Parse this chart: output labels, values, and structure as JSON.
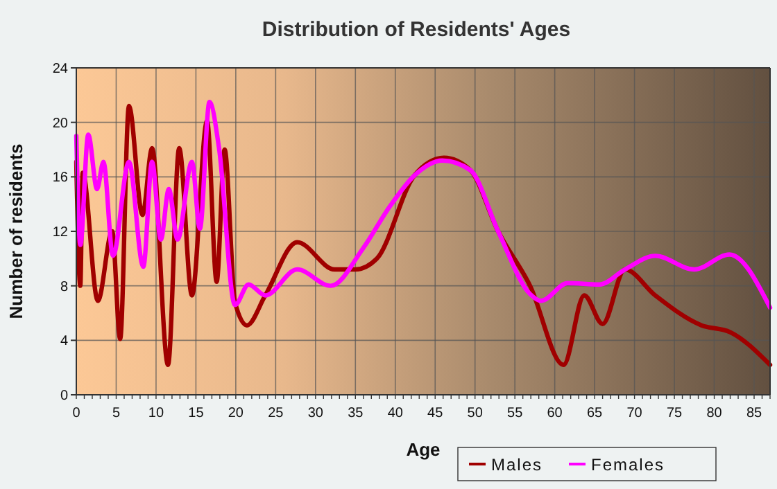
{
  "chart_data": {
    "type": "line",
    "title": "Distribution of Residents' Ages",
    "xlabel": "Age",
    "ylabel": "Number of residents",
    "xlim": [
      0,
      87
    ],
    "ylim": [
      0,
      24
    ],
    "xticks": [
      0,
      5,
      10,
      15,
      20,
      25,
      30,
      35,
      40,
      45,
      50,
      55,
      60,
      65,
      70,
      75,
      80,
      85
    ],
    "yticks": [
      0,
      4,
      8,
      12,
      16,
      20,
      24
    ],
    "grid": true,
    "legend": "bottom right",
    "line_style": "solid",
    "marker": "none",
    "series": [
      {
        "name": "Males",
        "color": "#a00000",
        "x": [
          0,
          0.5,
          0.8,
          2.7,
          4.5,
          5.5,
          6.6,
          8.3,
          9.5,
          11.5,
          12.9,
          14.5,
          16.4,
          17.6,
          18.6,
          19.9,
          21.4,
          23.7,
          27.7,
          32.4,
          35,
          37.7,
          42.4,
          46.1,
          49.4,
          52.9,
          56.9,
          61.1,
          63.7,
          66,
          68.8,
          72.6,
          78.4,
          82,
          87
        ],
        "values": [
          17.1,
          8,
          16.3,
          6.9,
          12,
          4.1,
          21.2,
          13.2,
          18.1,
          2.2,
          18.1,
          7.3,
          20.1,
          8.3,
          18,
          6.8,
          5.1,
          7.3,
          11.2,
          9.2,
          9.2,
          10,
          16.1,
          17.4,
          16.5,
          12,
          8,
          2.2,
          7.3,
          5.2,
          9.2,
          7.3,
          5.1,
          4.6,
          2.2
        ]
      },
      {
        "name": "Females",
        "color": "#ff00ff",
        "x": [
          0,
          0.5,
          1.5,
          2.6,
          3.4,
          4.6,
          6.6,
          8.4,
          9.5,
          10.6,
          11.6,
          12.7,
          14.5,
          15.5,
          16.7,
          17.9,
          19.9,
          21.6,
          23.7,
          27.7,
          31.9,
          35.9,
          39.4,
          42.4,
          45.9,
          49.4,
          52.9,
          56.9,
          58.3,
          61.6,
          65.6,
          68.8,
          72.6,
          77.5,
          81.9,
          87
        ],
        "values": [
          19,
          11,
          19.1,
          15.1,
          17.1,
          10.2,
          17.1,
          9.4,
          17.1,
          11.4,
          15.1,
          11.4,
          17.1,
          12.2,
          21.5,
          18.1,
          6.6,
          8.1,
          7.3,
          9.2,
          8,
          10.7,
          13.9,
          16.1,
          17.2,
          16.5,
          12,
          7.4,
          6.9,
          8.2,
          8.1,
          9.2,
          10.2,
          9.2,
          10.3,
          6.4
        ]
      }
    ]
  }
}
